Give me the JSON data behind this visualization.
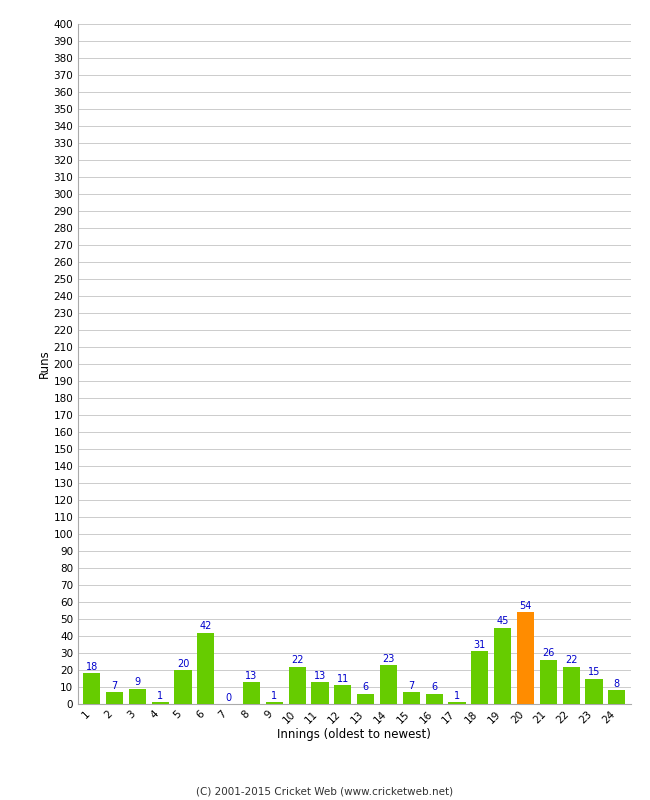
{
  "xlabel": "Innings (oldest to newest)",
  "ylabel": "Runs",
  "categories": [
    "1",
    "2",
    "3",
    "4",
    "5",
    "6",
    "7",
    "8",
    "9",
    "10",
    "11",
    "12",
    "13",
    "14",
    "15",
    "16",
    "17",
    "18",
    "19",
    "20",
    "21",
    "22",
    "23",
    "24"
  ],
  "values": [
    18,
    7,
    9,
    1,
    20,
    42,
    0,
    13,
    1,
    22,
    13,
    11,
    6,
    23,
    7,
    6,
    1,
    31,
    45,
    54,
    26,
    22,
    15,
    8
  ],
  "bar_colors": [
    "#66cc00",
    "#66cc00",
    "#66cc00",
    "#66cc00",
    "#66cc00",
    "#66cc00",
    "#66cc00",
    "#66cc00",
    "#66cc00",
    "#66cc00",
    "#66cc00",
    "#66cc00",
    "#66cc00",
    "#66cc00",
    "#66cc00",
    "#66cc00",
    "#66cc00",
    "#66cc00",
    "#66cc00",
    "#ff8c00",
    "#66cc00",
    "#66cc00",
    "#66cc00",
    "#66cc00"
  ],
  "ylim": [
    0,
    400
  ],
  "ytick_step": 10,
  "label_color": "#0000cc",
  "background_color": "#ffffff",
  "grid_color": "#cccccc",
  "footer": "(C) 2001-2015 Cricket Web (www.cricketweb.net)",
  "label_fontsize": 7.0,
  "tick_fontsize": 7.5,
  "axis_label_fontsize": 8.5,
  "footer_fontsize": 7.5
}
